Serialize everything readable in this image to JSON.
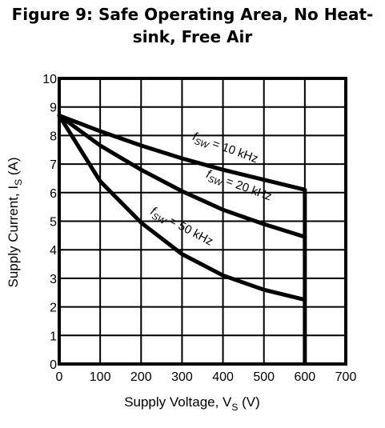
{
  "chart_data": {
    "type": "line",
    "title_line1": "Figure 9: Safe Operating Area, No Heat-",
    "title_line2": "sink, Free Air",
    "xlabel": "Supply Voltage, V",
    "xlabel_sub": "S",
    "xlabel_unit": " (V)",
    "ylabel": "Supply Current, I",
    "ylabel_sub": "S",
    "ylabel_unit": " (A)",
    "xlim": [
      0,
      700
    ],
    "ylim": [
      0,
      10
    ],
    "xticks": [
      0,
      100,
      200,
      300,
      400,
      500,
      600,
      700
    ],
    "yticks": [
      0,
      1,
      2,
      3,
      4,
      5,
      6,
      7,
      8,
      9,
      10
    ],
    "grid": true,
    "boundary": {
      "x": 600,
      "y_from": 0,
      "y_to": 6.1
    },
    "series": [
      {
        "name": "f SW = 10 kHz",
        "label_f": "f",
        "label_sub": "SW",
        "label_rest": " = 10 kHz",
        "x": [
          0,
          100,
          200,
          300,
          400,
          500,
          600
        ],
        "y": [
          8.7,
          8.15,
          7.65,
          7.2,
          6.8,
          6.45,
          6.1
        ]
      },
      {
        "name": "f SW = 20 kHz",
        "label_f": "f",
        "label_sub": "SW",
        "label_rest": " = 20 kHz",
        "x": [
          0,
          100,
          200,
          300,
          400,
          500,
          600
        ],
        "y": [
          8.7,
          7.65,
          6.8,
          6.05,
          5.4,
          4.9,
          4.45
        ]
      },
      {
        "name": "f SW = 50 kHz",
        "label_f": "f",
        "label_sub": "SW",
        "label_rest": " = 50 kHz",
        "x": [
          0,
          100,
          200,
          300,
          400,
          500,
          600
        ],
        "y": [
          8.7,
          6.4,
          4.95,
          3.85,
          3.1,
          2.6,
          2.25
        ]
      }
    ]
  }
}
